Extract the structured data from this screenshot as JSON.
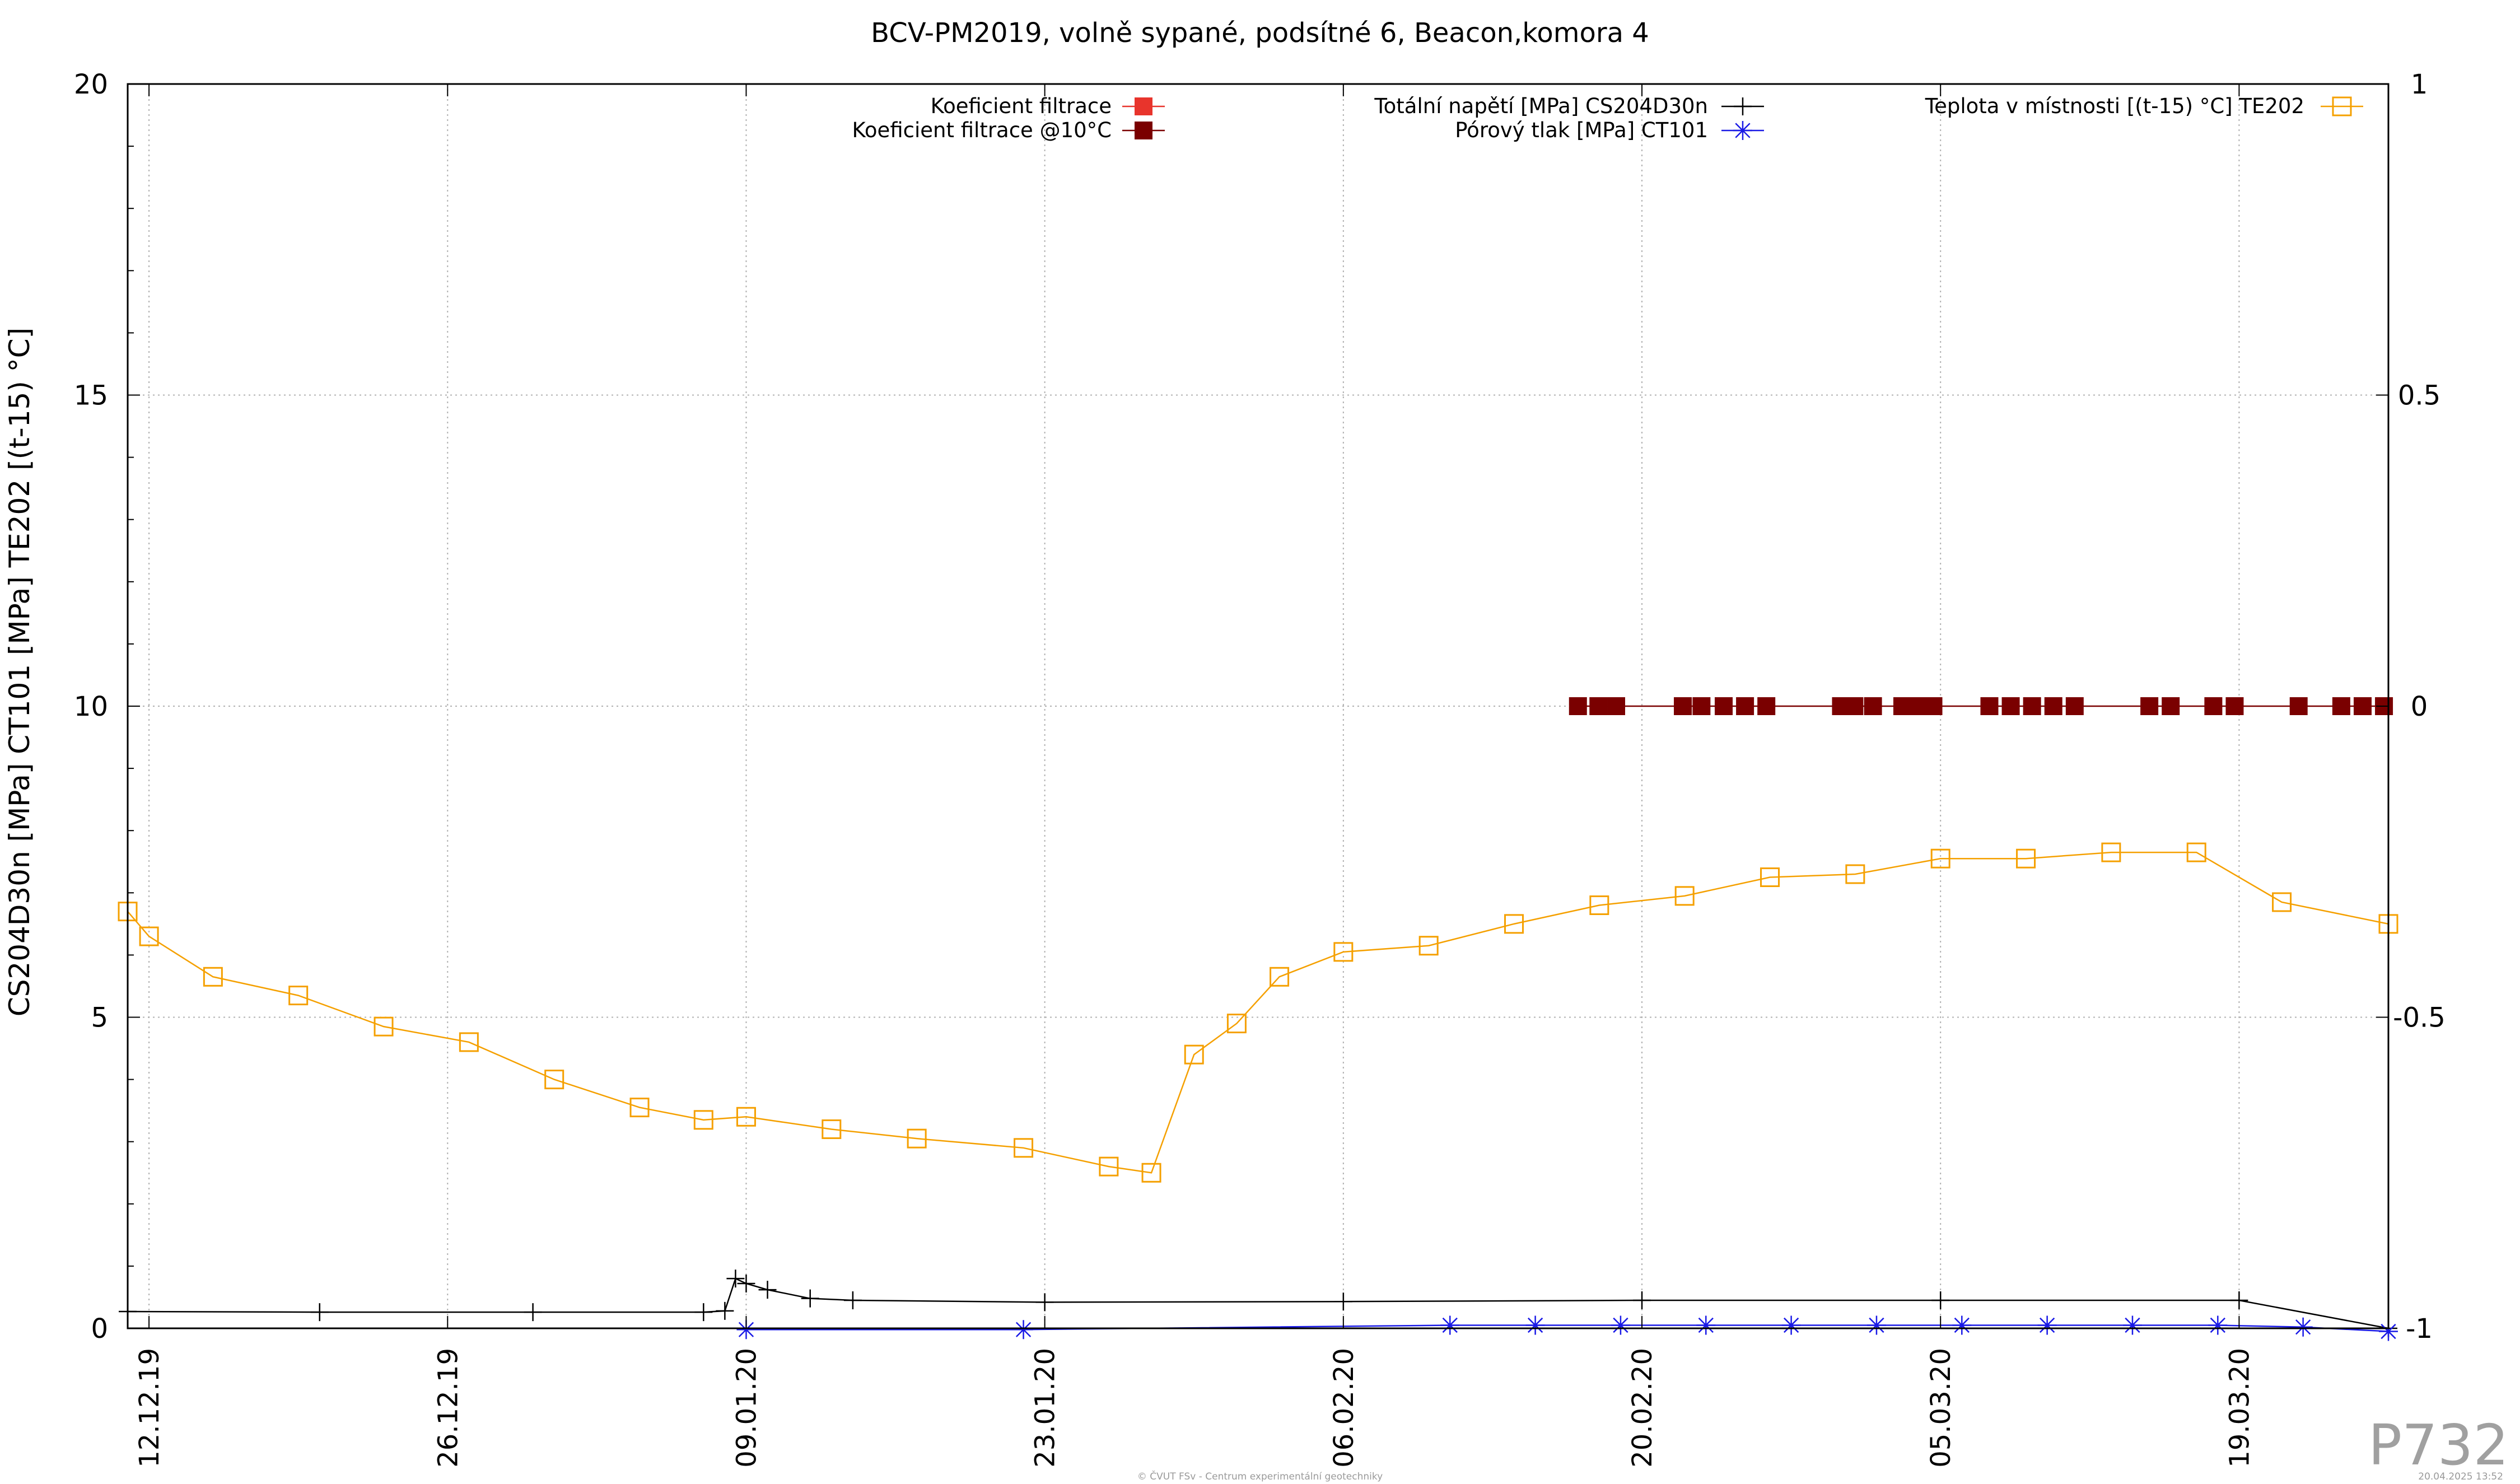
{
  "chart_data": {
    "type": "line",
    "title": "BCV-PM2019, volně sypané, podsítné 6, Beacon,komora 4",
    "ylabel": "CS204D30n [MPa] CT101 [MPa] TE202 [(t-15) °C]",
    "y2label": "",
    "ylim": [
      0,
      20
    ],
    "y2lim": [
      -1,
      1
    ],
    "yticks": [
      "0",
      "5",
      "10",
      "15",
      "20"
    ],
    "y2ticks": [
      "-1",
      "-0.5",
      "0",
      "0.5",
      "1"
    ],
    "xlim": [
      "2019-12-11",
      "2020-03-26"
    ],
    "xticks": [
      {
        "date": "2019-12-12",
        "label": "12.12.19"
      },
      {
        "date": "2019-12-26",
        "label": "26.12.19"
      },
      {
        "date": "2020-01-09",
        "label": "09.01.20"
      },
      {
        "date": "2020-01-23",
        "label": "23.01.20"
      },
      {
        "date": "2020-02-06",
        "label": "06.02.20"
      },
      {
        "date": "2020-02-20",
        "label": "20.02.20"
      },
      {
        "date": "2020-03-05",
        "label": "05.03.20"
      },
      {
        "date": "2020-03-19",
        "label": "19.03.20"
      }
    ],
    "grid": true,
    "series": [
      {
        "name": "Koeficient filtrace",
        "axis": "y2",
        "color": "#e8342c",
        "marker": "filled-square",
        "x": [],
        "y": []
      },
      {
        "name": "Koeficient filtrace @10°C",
        "axis": "y2",
        "color": "#7a0000",
        "marker": "filled-square",
        "x": [
          "2020-02-17",
          "2020-02-17 23:00",
          "2020-02-18 19:00",
          "2020-02-21 22:00",
          "2020-02-22 19:00",
          "2020-02-23 20:00",
          "2020-02-24 20:00",
          "2020-02-25 20:00",
          "2020-02-29 08:00",
          "2020-02-29 23:00",
          "2020-03-01 20:00",
          "2020-03-03 05:00",
          "2020-03-03 23:00",
          "2020-03-04 16:00",
          "2020-03-07 07:00",
          "2020-03-08 07:00",
          "2020-03-09 07:00",
          "2020-03-10 07:00",
          "2020-03-11 07:00",
          "2020-03-14 19:00",
          "2020-03-15 19:00",
          "2020-03-17 19:00",
          "2020-03-18 19:00",
          "2020-03-21 19:00",
          "2020-03-23 19:00",
          "2020-03-24 19:00",
          "2020-03-25 19:00"
        ],
        "y": [
          0,
          0,
          0,
          0,
          0,
          0,
          0,
          0,
          0,
          0,
          0,
          0,
          0,
          0,
          0,
          0,
          0,
          0,
          0,
          0,
          0,
          0,
          0,
          0,
          0,
          0,
          0
        ]
      },
      {
        "name": "Totální napětí [MPa] CS204D30n",
        "axis": "y1",
        "color": "#000000",
        "marker": "plus",
        "x": [
          "2019-12-11",
          "2019-12-20",
          "2019-12-30",
          "2020-01-07",
          "2020-01-08",
          "2020-01-08 12:00",
          "2020-01-09",
          "2020-01-10",
          "2020-01-12",
          "2020-01-14",
          "2020-01-23",
          "2020-02-06",
          "2020-02-20",
          "2020-03-05",
          "2020-03-19",
          "2020-03-26"
        ],
        "y": [
          0.27,
          0.26,
          0.26,
          0.26,
          0.28,
          0.8,
          0.72,
          0.62,
          0.48,
          0.45,
          0.42,
          0.43,
          0.45,
          0.45,
          0.45,
          0.0
        ]
      },
      {
        "name": "Pórový tlak [MPa] CT101",
        "axis": "y1",
        "color": "#1a1ae6",
        "marker": "star",
        "x": [
          "2020-01-09",
          "2020-01-22",
          "2020-02-11",
          "2020-02-15",
          "2020-02-19",
          "2020-02-23",
          "2020-02-27",
          "2020-03-02",
          "2020-03-06",
          "2020-03-10",
          "2020-03-14",
          "2020-03-18",
          "2020-03-22",
          "2020-03-26"
        ],
        "y": [
          -0.02,
          -0.02,
          0.05,
          0.05,
          0.05,
          0.05,
          0.05,
          0.05,
          0.05,
          0.05,
          0.05,
          0.05,
          0.02,
          -0.05
        ]
      },
      {
        "name": "Teplota v místnosti [(t-15) °C] TE202",
        "axis": "y1",
        "color": "#f5a000",
        "marker": "open-square",
        "x": [
          "2019-12-11",
          "2019-12-12",
          "2019-12-15",
          "2019-12-19",
          "2019-12-23",
          "2019-12-27",
          "2019-12-31",
          "2020-01-04",
          "2020-01-07",
          "2020-01-09",
          "2020-01-13",
          "2020-01-17",
          "2020-01-22",
          "2020-01-26",
          "2020-01-28",
          "2020-01-30",
          "2020-02-01",
          "2020-02-03",
          "2020-02-06",
          "2020-02-10",
          "2020-02-14",
          "2020-02-18",
          "2020-02-22",
          "2020-02-26",
          "2020-03-01",
          "2020-03-05",
          "2020-03-09",
          "2020-03-13",
          "2020-03-17",
          "2020-03-21",
          "2020-03-26"
        ],
        "y": [
          6.7,
          6.3,
          5.65,
          5.35,
          4.85,
          4.6,
          4.0,
          3.55,
          3.35,
          3.4,
          3.2,
          3.05,
          2.9,
          2.6,
          2.5,
          4.4,
          4.9,
          5.65,
          6.05,
          6.15,
          6.5,
          6.8,
          6.95,
          7.25,
          7.3,
          7.55,
          7.55,
          7.65,
          7.65,
          6.85,
          6.5
        ]
      }
    ]
  },
  "watermark": "P732",
  "footer": {
    "center": "© ČVUT FSv - Centrum experimentální geotechniky",
    "right": "20.04.2025 13:52"
  }
}
